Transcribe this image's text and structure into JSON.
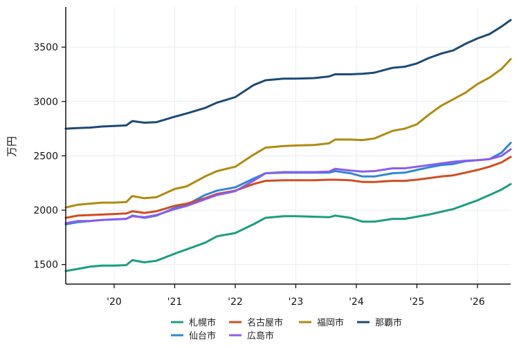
{
  "chart_data": {
    "type": "line",
    "title": "",
    "xlabel": "",
    "ylabel": "万円",
    "xlim": [
      2019.2,
      2026.55
    ],
    "ylim": [
      1320,
      3870
    ],
    "x_ticks": [
      2020,
      2021,
      2022,
      2023,
      2024,
      2025,
      2026
    ],
    "x_tick_labels": [
      "'20",
      "'21",
      "'22",
      "'23",
      "'24",
      "'25",
      "'26"
    ],
    "y_ticks": [
      1500,
      2000,
      2500,
      3000,
      3500
    ],
    "grid": true,
    "legend": {
      "placement": "bottom-center",
      "columns": 4
    },
    "x": [
      2019.2,
      2019.4,
      2019.6,
      2019.8,
      2020.0,
      2020.2,
      2020.3,
      2020.5,
      2020.7,
      2021.0,
      2021.2,
      2021.5,
      2021.7,
      2022.0,
      2022.3,
      2022.5,
      2022.8,
      2023.0,
      2023.3,
      2023.55,
      2023.65,
      2023.9,
      2024.1,
      2024.3,
      2024.6,
      2024.8,
      2025.0,
      2025.2,
      2025.4,
      2025.6,
      2025.8,
      2026.0,
      2026.2,
      2026.4,
      2026.55
    ],
    "series": [
      {
        "name": "札幌市",
        "color": "#1a9e82",
        "values": [
          1440,
          1460,
          1480,
          1490,
          1490,
          1495,
          1540,
          1520,
          1535,
          1600,
          1640,
          1700,
          1760,
          1790,
          1870,
          1930,
          1945,
          1945,
          1940,
          1935,
          1950,
          1930,
          1895,
          1895,
          1920,
          1920,
          1940,
          1960,
          1985,
          2010,
          2050,
          2090,
          2140,
          2190,
          2240
        ]
      },
      {
        "name": "仙台市",
        "color": "#2f86d6",
        "values": [
          1870,
          1890,
          1900,
          1910,
          1915,
          1920,
          1950,
          1930,
          1950,
          2020,
          2050,
          2140,
          2180,
          2210,
          2290,
          2340,
          2345,
          2345,
          2345,
          2345,
          2360,
          2340,
          2310,
          2310,
          2340,
          2345,
          2370,
          2395,
          2415,
          2425,
          2450,
          2460,
          2470,
          2530,
          2620
        ]
      },
      {
        "name": "名古屋市",
        "color": "#d24b1f",
        "values": [
          1930,
          1950,
          1955,
          1960,
          1965,
          1970,
          1990,
          1975,
          1990,
          2040,
          2060,
          2110,
          2150,
          2180,
          2240,
          2270,
          2275,
          2275,
          2275,
          2280,
          2280,
          2275,
          2260,
          2260,
          2270,
          2270,
          2280,
          2295,
          2310,
          2320,
          2345,
          2370,
          2400,
          2440,
          2490
        ]
      },
      {
        "name": "広島市",
        "color": "#8a5cf0",
        "values": [
          1880,
          1900,
          1900,
          1910,
          1915,
          1920,
          1945,
          1935,
          1955,
          2010,
          2040,
          2100,
          2140,
          2175,
          2270,
          2340,
          2350,
          2350,
          2350,
          2355,
          2380,
          2365,
          2355,
          2360,
          2385,
          2385,
          2400,
          2415,
          2430,
          2445,
          2455,
          2460,
          2470,
          2500,
          2560
        ]
      },
      {
        "name": "福岡市",
        "color": "#b08a0e",
        "values": [
          2025,
          2050,
          2060,
          2070,
          2070,
          2075,
          2130,
          2110,
          2120,
          2195,
          2220,
          2310,
          2360,
          2400,
          2510,
          2575,
          2590,
          2595,
          2600,
          2615,
          2650,
          2650,
          2645,
          2660,
          2730,
          2750,
          2790,
          2880,
          2960,
          3020,
          3080,
          3160,
          3220,
          3300,
          3390
        ]
      },
      {
        "name": "那覇市",
        "color": "#1b4a75",
        "values": [
          2750,
          2755,
          2760,
          2770,
          2775,
          2780,
          2820,
          2805,
          2810,
          2860,
          2890,
          2940,
          2990,
          3040,
          3150,
          3195,
          3210,
          3210,
          3215,
          3230,
          3250,
          3250,
          3255,
          3265,
          3310,
          3320,
          3350,
          3400,
          3440,
          3470,
          3530,
          3580,
          3620,
          3690,
          3750
        ]
      }
    ]
  }
}
